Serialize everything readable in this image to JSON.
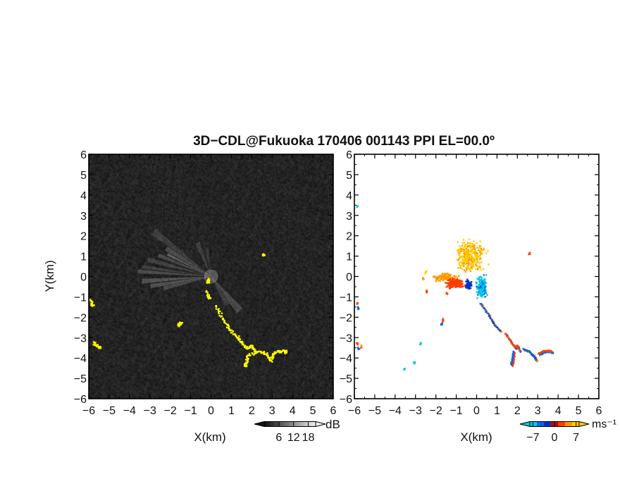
{
  "title": "3D−CDL@Fukuoka 170406 001143 PPI EL=00.0º",
  "chart_data": [
    {
      "type": "heatmap",
      "panel": "reflectivity",
      "xlabel": "X(km)",
      "ylabel": "Y(km)",
      "xlim": [
        -6,
        6
      ],
      "ylim": [
        -6,
        6
      ],
      "xticks": [
        "−6",
        "−5",
        "−4",
        "−3",
        "−2",
        "−1",
        "0",
        "1",
        "2",
        "3",
        "4",
        "5",
        "6"
      ],
      "yticks": [
        "6",
        "5",
        "4",
        "3",
        "2",
        "1",
        "0",
        "−1",
        "−2",
        "−3",
        "−4",
        "−5",
        "−6"
      ],
      "background": "noise",
      "highlight_color": "#ffff00",
      "colorbar": {
        "unit": "dB",
        "ticks": [
          "6",
          "12",
          "18"
        ],
        "range": [
          0,
          21
        ]
      },
      "beams": [
        {
          "az": -52,
          "len": 3.6,
          "w": 6,
          "a": 0.14
        },
        {
          "az": -58,
          "len": 2.6,
          "w": 5,
          "a": 0.22
        },
        {
          "az": -63,
          "len": 2.4,
          "w": 3,
          "a": 0.32
        },
        {
          "az": -68,
          "len": 2.8,
          "w": 4,
          "a": 0.2
        },
        {
          "az": -75,
          "len": 3.2,
          "w": 4,
          "a": 0.16
        },
        {
          "az": -82,
          "len": 3.4,
          "w": 3,
          "a": 0.16
        },
        {
          "az": -86,
          "len": 3.6,
          "w": 3,
          "a": 0.22
        },
        {
          "az": -94,
          "len": 3.4,
          "w": 4,
          "a": 0.25
        },
        {
          "az": -99,
          "len": 3.0,
          "w": 4,
          "a": 0.25
        },
        {
          "az": -104,
          "len": 2.4,
          "w": 5,
          "a": 0.2
        },
        {
          "az": -22,
          "len": 1.8,
          "w": 8,
          "a": 0.14
        },
        {
          "az": -8,
          "len": 1.4,
          "w": 7,
          "a": 0.12
        },
        {
          "az": 140,
          "len": 2.2,
          "w": 10,
          "a": 0.2
        },
        {
          "az": 150,
          "len": 1.6,
          "w": 8,
          "a": 0.15
        }
      ],
      "echoes": [
        [
          -0.3,
          -0.7
        ],
        [
          -0.1,
          -1.0
        ],
        [
          0.2,
          -1.4
        ],
        [
          0.4,
          -1.8
        ],
        [
          0.6,
          -2.1
        ],
        [
          0.8,
          -2.4
        ],
        [
          0.9,
          -2.6
        ],
        [
          1.1,
          -2.8
        ],
        [
          1.3,
          -2.95
        ],
        [
          1.4,
          -3.1
        ],
        [
          1.55,
          -3.3
        ],
        [
          1.7,
          -3.5
        ],
        [
          1.85,
          -3.45
        ],
        [
          2.0,
          -3.35
        ],
        [
          2.1,
          -3.55
        ],
        [
          2.2,
          -3.75
        ],
        [
          1.8,
          -3.8
        ],
        [
          1.75,
          -4.0
        ],
        [
          1.7,
          -4.2
        ],
        [
          1.65,
          -4.35
        ],
        [
          2.3,
          -3.6
        ],
        [
          2.5,
          -3.7
        ],
        [
          2.7,
          -3.8
        ],
        [
          2.8,
          -3.95
        ],
        [
          2.9,
          -4.1
        ],
        [
          3.0,
          -3.85
        ],
        [
          3.1,
          -3.7
        ],
        [
          3.3,
          -3.65
        ],
        [
          3.5,
          -3.6
        ],
        [
          3.65,
          -3.65
        ],
        [
          -5.9,
          -1.15
        ],
        [
          -5.85,
          -1.35
        ],
        [
          -5.8,
          -3.2
        ],
        [
          -5.65,
          -3.35
        ],
        [
          -5.5,
          -3.45
        ],
        [
          -1.5,
          -2.2
        ],
        [
          -1.6,
          -2.35
        ],
        [
          -0.15,
          -0.1
        ],
        [
          -0.2,
          -0.25
        ],
        [
          2.55,
          1.1
        ]
      ]
    },
    {
      "type": "heatmap",
      "panel": "radial-velocity",
      "xlabel": "X(km)",
      "xlim": [
        -6,
        6
      ],
      "ylim": [
        -6,
        6
      ],
      "xticks": [
        "−6",
        "−5",
        "−4",
        "−3",
        "−2",
        "−1",
        "0",
        "1",
        "2",
        "3",
        "4",
        "5",
        "6"
      ],
      "yticks": [
        "6",
        "5",
        "4",
        "3",
        "2",
        "1",
        "0",
        "−1",
        "−2",
        "−3",
        "−4",
        "−5",
        "−6"
      ],
      "colorbar": {
        "unit": "ms⁻¹",
        "ticks": [
          "−7",
          "0",
          "7"
        ],
        "range": [
          -8,
          8
        ],
        "colors": [
          "#00c8e6",
          "#0a64e6",
          "#0032c8",
          "#c80000",
          "#ff3c00",
          "#ff9600",
          "#ffcc00"
        ]
      },
      "regions": [
        {
          "cx": -0.3,
          "cy": 1.0,
          "rx": 1.0,
          "ry": 1.0,
          "n": 320,
          "v": 6,
          "spread": 1.5
        },
        {
          "cx": -1.5,
          "cy": -0.05,
          "rx": 0.8,
          "ry": 0.25,
          "n": 160,
          "v": 5,
          "spread": 1.5
        },
        {
          "cx": -1.05,
          "cy": -0.35,
          "rx": 0.6,
          "ry": 0.3,
          "n": 190,
          "v": 2,
          "spread": 1.2
        },
        {
          "cx": 0.25,
          "cy": -0.5,
          "rx": 0.35,
          "ry": 0.7,
          "n": 200,
          "v": -6,
          "spread": 1.2
        },
        {
          "cx": -0.4,
          "cy": -0.4,
          "rx": 0.25,
          "ry": 0.3,
          "n": 60,
          "v": -2.5,
          "spread": 1.0
        }
      ],
      "tracks": [
        {
          "pts": [
            [
              0.2,
              -1.3
            ],
            [
              0.6,
              -1.9
            ],
            [
              0.9,
              -2.4
            ],
            [
              1.2,
              -2.7
            ]
          ],
          "v": -3.5,
          "side": 3.5
        },
        {
          "pts": [
            [
              1.4,
              -2.8
            ],
            [
              1.7,
              -3.2
            ],
            [
              1.9,
              -3.5
            ],
            [
              2.0,
              -3.4
            ],
            [
              2.1,
              -3.65
            ]
          ],
          "v": 3,
          "side": -5
        },
        {
          "pts": [
            [
              1.8,
              -3.7
            ],
            [
              1.75,
              -4.1
            ],
            [
              1.7,
              -4.35
            ]
          ],
          "v": -5,
          "side": 3
        },
        {
          "pts": [
            [
              2.3,
              -3.55
            ],
            [
              2.6,
              -3.7
            ],
            [
              2.8,
              -3.9
            ],
            [
              2.95,
              -4.1
            ]
          ],
          "v": -4,
          "side": 3.5
        },
        {
          "pts": [
            [
              3.05,
              -3.8
            ],
            [
              3.3,
              -3.65
            ],
            [
              3.6,
              -3.65
            ],
            [
              3.7,
              -3.7
            ]
          ],
          "v": 3,
          "side": -5
        }
      ],
      "blobs": [
        {
          "x": -5.85,
          "y": -1.35,
          "v": 3
        },
        {
          "x": -5.8,
          "y": -1.55,
          "v": -4
        },
        {
          "x": -5.85,
          "y": -3.3,
          "v": 3
        },
        {
          "x": -5.65,
          "y": -3.45,
          "v": 3.5
        },
        {
          "x": -5.8,
          "y": -3.55,
          "v": -4
        },
        {
          "x": -1.65,
          "y": -2.15,
          "v": 3
        },
        {
          "x": -1.72,
          "y": -2.35,
          "v": -4.5
        },
        {
          "x": -5.85,
          "y": 3.45,
          "v": -7
        },
        {
          "x": -3.55,
          "y": -4.55,
          "v": -7
        },
        {
          "x": -3.05,
          "y": -4.2,
          "v": -7
        },
        {
          "x": -2.75,
          "y": -3.3,
          "v": -7
        },
        {
          "x": 2.6,
          "y": 1.1,
          "v": 3
        },
        {
          "x": -2.5,
          "y": 0.2,
          "v": 6
        },
        {
          "x": -2.6,
          "y": -0.1,
          "v": 5
        },
        {
          "x": -2.45,
          "y": -0.75,
          "v": 3
        },
        {
          "x": -1.45,
          "y": -0.85,
          "v": 3
        }
      ]
    }
  ]
}
